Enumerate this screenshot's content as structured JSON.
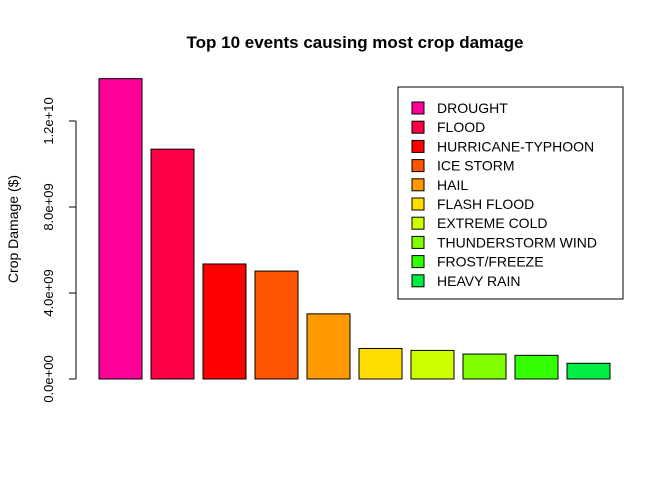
{
  "chart_data": {
    "type": "bar",
    "title": "Top 10 events causing most crop damage",
    "xlabel": "",
    "ylabel": "Crop Damage ($)",
    "ylim": [
      0,
      14000000000
    ],
    "yticks": [
      0,
      4000000000,
      8000000000,
      12000000000
    ],
    "ytick_labels": [
      "0.0e+00",
      "4.0e+09",
      "8.0e+09",
      "1.2e+10"
    ],
    "categories": [
      "DROUGHT",
      "FLOOD",
      "HURRICANE-TYPHOON",
      "ICE STORM",
      "HAIL",
      "FLASH FLOOD",
      "EXTREME COLD",
      "THUNDERSTORM WIND",
      "FROST/FREEZE",
      "HEAVY RAIN"
    ],
    "values": [
      13970000000,
      10690000000,
      5350000000,
      5020000000,
      3030000000,
      1420000000,
      1330000000,
      1160000000,
      1100000000,
      730000000
    ],
    "colors": [
      "#FF0099",
      "#FF0044",
      "#FF0000",
      "#FF5500",
      "#FF9900",
      "#FFDD00",
      "#CCFF00",
      "#80FF00",
      "#33FF00",
      "#00EE44"
    ],
    "legend_position": "top-right",
    "grid": false
  }
}
